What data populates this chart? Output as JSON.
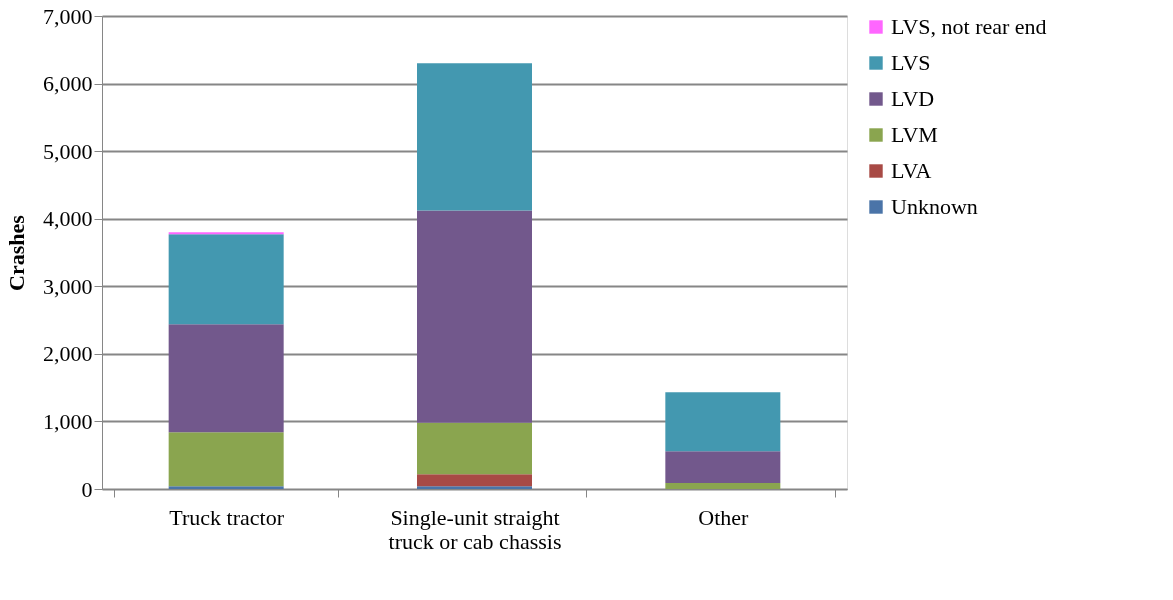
{
  "chart_data": {
    "type": "bar",
    "stacked": true,
    "ylabel": "Crashes",
    "categories": [
      "Truck tractor",
      "Single-unit straight truck or cab chassis",
      "Other"
    ],
    "series": [
      {
        "name": "Unknown",
        "color": "#4a74a8",
        "values": [
          40,
          40,
          0
        ]
      },
      {
        "name": "LVA",
        "color": "#a84a45",
        "values": [
          0,
          180,
          0
        ]
      },
      {
        "name": "LVM",
        "color": "#8aa54f",
        "values": [
          800,
          760,
          90
        ]
      },
      {
        "name": "LVD",
        "color": "#72588c",
        "values": [
          1600,
          3140,
          470
        ]
      },
      {
        "name": "LVS",
        "color": "#4398b0",
        "values": [
          1330,
          2180,
          870
        ]
      },
      {
        "name": "LVS, not rear end",
        "color": "#ff66ff",
        "values": [
          30,
          0,
          0
        ]
      }
    ],
    "ylim": [
      0,
      7000
    ],
    "yticks": [
      0,
      {
        "value": 1000,
        "label": "1,000"
      },
      {
        "value": 2000,
        "label": "2,000"
      },
      {
        "value": 3000,
        "label": "3,000"
      },
      {
        "value": 4000,
        "label": "4,000"
      },
      {
        "value": 5000,
        "label": "5,000"
      },
      {
        "value": 6000,
        "label": "6,000"
      },
      {
        "value": 7000,
        "label": "7,000"
      }
    ],
    "grid": "y",
    "legend": "right"
  }
}
